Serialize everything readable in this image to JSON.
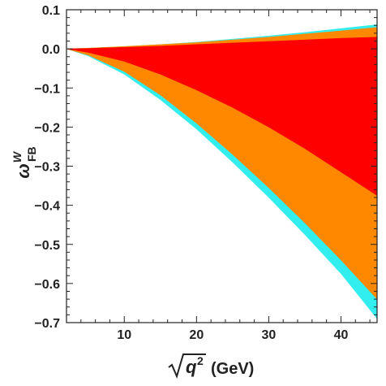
{
  "chart_data": {
    "type": "area",
    "title": "",
    "xlabel": {
      "base": "q",
      "exponent": "2",
      "unit": "(GeV)"
    },
    "ylabel": {
      "base": "ω",
      "superscript": "W",
      "subscript": "FB"
    },
    "xlim": [
      2,
      45
    ],
    "ylim": [
      -0.7,
      0.1
    ],
    "grid": false,
    "x_ticks": [
      {
        "value": 10,
        "label": "10"
      },
      {
        "value": 20,
        "label": "20"
      },
      {
        "value": 30,
        "label": "30"
      },
      {
        "value": 40,
        "label": "40"
      }
    ],
    "y_ticks": [
      {
        "value": 0.1,
        "label": "0.1"
      },
      {
        "value": 0.0,
        "label": "0.0"
      },
      {
        "value": -0.1,
        "label": "−0.1"
      },
      {
        "value": -0.2,
        "label": "−0.2"
      },
      {
        "value": -0.3,
        "label": "−0.3"
      },
      {
        "value": -0.4,
        "label": "−0.4"
      },
      {
        "value": -0.5,
        "label": "−0.5"
      },
      {
        "value": -0.6,
        "label": "−0.6"
      },
      {
        "value": -0.7,
        "label": "−0.7"
      }
    ],
    "series": [
      {
        "color": "#33eeee",
        "x": [
          2,
          5,
          10,
          15,
          20,
          25,
          30,
          35,
          40,
          45
        ],
        "upper": [
          0.0,
          0.002,
          0.006,
          0.011,
          0.017,
          0.025,
          0.033,
          0.042,
          0.052,
          0.062
        ],
        "lower": [
          0.0,
          -0.018,
          -0.065,
          -0.13,
          -0.205,
          -0.29,
          -0.38,
          -0.475,
          -0.575,
          -0.69
        ]
      },
      {
        "color": "#ff8800",
        "x": [
          2,
          5,
          10,
          15,
          20,
          25,
          30,
          35,
          40,
          45
        ],
        "upper": [
          0.0,
          0.002,
          0.006,
          0.011,
          0.016,
          0.023,
          0.03,
          0.038,
          0.046,
          0.055
        ],
        "lower": [
          0.0,
          -0.016,
          -0.058,
          -0.118,
          -0.19,
          -0.27,
          -0.355,
          -0.445,
          -0.54,
          -0.64
        ]
      },
      {
        "color": "#ff0000",
        "x": [
          2,
          5,
          10,
          15,
          20,
          25,
          30,
          35,
          40,
          45
        ],
        "upper": [
          0.0,
          0.001,
          0.004,
          0.007,
          0.011,
          0.015,
          0.019,
          0.023,
          0.027,
          0.03
        ],
        "lower": [
          0.0,
          -0.009,
          -0.032,
          -0.065,
          -0.105,
          -0.15,
          -0.2,
          -0.255,
          -0.315,
          -0.375
        ]
      }
    ]
  }
}
